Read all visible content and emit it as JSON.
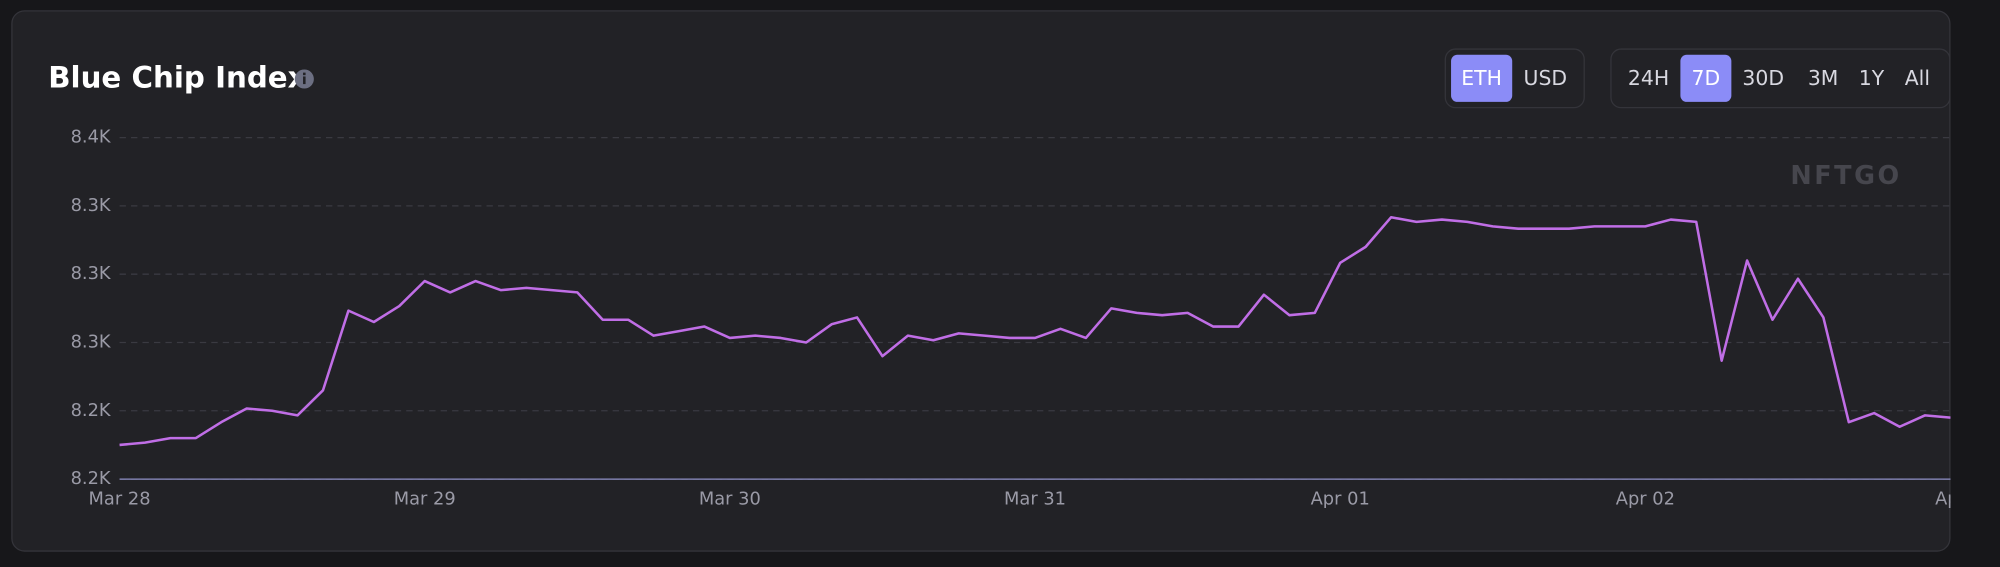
{
  "chart_data": {
    "type": "line",
    "title": "Blue Chip Index",
    "categories": [
      "Mar 28",
      null,
      null,
      null,
      null,
      null,
      null,
      null,
      null,
      null,
      null,
      null,
      "Mar 29",
      null,
      null,
      null,
      null,
      null,
      null,
      null,
      null,
      null,
      null,
      null,
      "Mar 30",
      null,
      null,
      null,
      null,
      null,
      null,
      null,
      null,
      null,
      null,
      null,
      "Mar 31",
      null,
      null,
      null,
      null,
      null,
      null,
      null,
      null,
      null,
      null,
      null,
      "Apr 01",
      null,
      null,
      null,
      null,
      null,
      null,
      null,
      null,
      null,
      null,
      null,
      "Apr 02",
      null,
      null,
      null,
      null,
      null,
      null,
      null,
      null,
      null,
      null,
      null,
      "Apr"
    ],
    "values": [
      8225,
      8226,
      8228,
      8228,
      8235,
      8241,
      8240,
      8238,
      8249,
      8284,
      8279,
      8286,
      8297,
      8292,
      8297,
      8293,
      8294,
      8293,
      8292,
      8280,
      8280,
      8273,
      8275,
      8277,
      8272,
      8273,
      8272,
      8270,
      8278,
      8281,
      8264,
      8273,
      8271,
      8274,
      8273,
      8272,
      8272,
      8276,
      8272,
      8285,
      8283,
      8282,
      8283,
      8277,
      8277,
      8291,
      8282,
      8283,
      8305,
      8312,
      8325,
      8323,
      8324,
      8323,
      8321,
      8320,
      8320,
      8320,
      8321,
      8321,
      8321,
      8324,
      8323,
      8262,
      8306,
      8280,
      8298,
      8281,
      8235,
      8239,
      8233,
      8238,
      8237
    ],
    "color": "#c06ee6",
    "ylim": [
      8210,
      8360
    ],
    "yticks": [
      {
        "value": 8210,
        "label": "8.2K"
      },
      {
        "value": 8240,
        "label": "8.2K"
      },
      {
        "value": 8270,
        "label": "8.3K"
      },
      {
        "value": 8300,
        "label": "8.3K"
      },
      {
        "value": 8330,
        "label": "8.3K"
      },
      {
        "value": 8360,
        "label": "8.4K"
      }
    ],
    "grid": true,
    "watermark": "NFTGO"
  },
  "controls": {
    "currencies": [
      "ETH",
      "USD"
    ],
    "selected_currency": "ETH",
    "ranges": [
      "24H",
      "7D",
      "30D",
      "3M",
      "1Y",
      "All"
    ],
    "selected_range": "7D"
  }
}
